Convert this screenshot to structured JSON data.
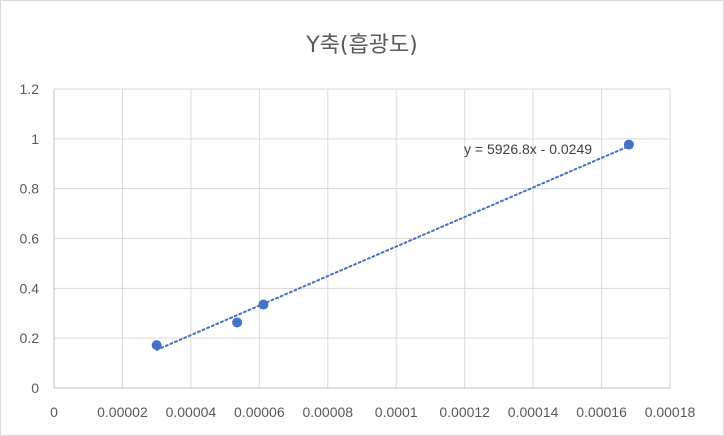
{
  "chart_data": {
    "type": "scatter",
    "title": "Y축(흡광도)",
    "xlabel": "",
    "ylabel": "",
    "xlim": [
      0,
      0.00018
    ],
    "ylim": [
      0,
      1.2
    ],
    "x_ticks": [
      0,
      2e-05,
      4e-05,
      6e-05,
      8e-05,
      0.0001,
      0.00012,
      0.00014,
      0.00016,
      0.00018
    ],
    "x_tick_labels": [
      "0",
      "0.00002",
      "0.00004",
      "0.00006",
      "0.00008",
      "0.0001",
      "0.00012",
      "0.00014",
      "0.00016",
      "0.00018"
    ],
    "y_ticks": [
      0,
      0.2,
      0.4,
      0.6,
      0.8,
      1,
      1.2
    ],
    "y_tick_labels": [
      "0",
      "0.2",
      "0.4",
      "0.6",
      "0.8",
      "1",
      "1.2"
    ],
    "grid": true,
    "legend": "none",
    "series": [
      {
        "x": [
          3e-05,
          5.35e-05,
          6.12e-05,
          0.000168
        ],
        "y": [
          0.172,
          0.263,
          0.335,
          0.977
        ]
      }
    ],
    "trendline": {
      "type": "linear",
      "style": "dotted",
      "slope": 5926.8,
      "intercept": -0.0249,
      "x_range": [
        3e-05,
        0.000168
      ],
      "equation_label": "y = 5926.8x - 0.0249"
    },
    "colors": {
      "marker": "#4472c4",
      "trendline": "#4472c4",
      "grid": "#d9d9d9",
      "text": "#595959"
    }
  }
}
